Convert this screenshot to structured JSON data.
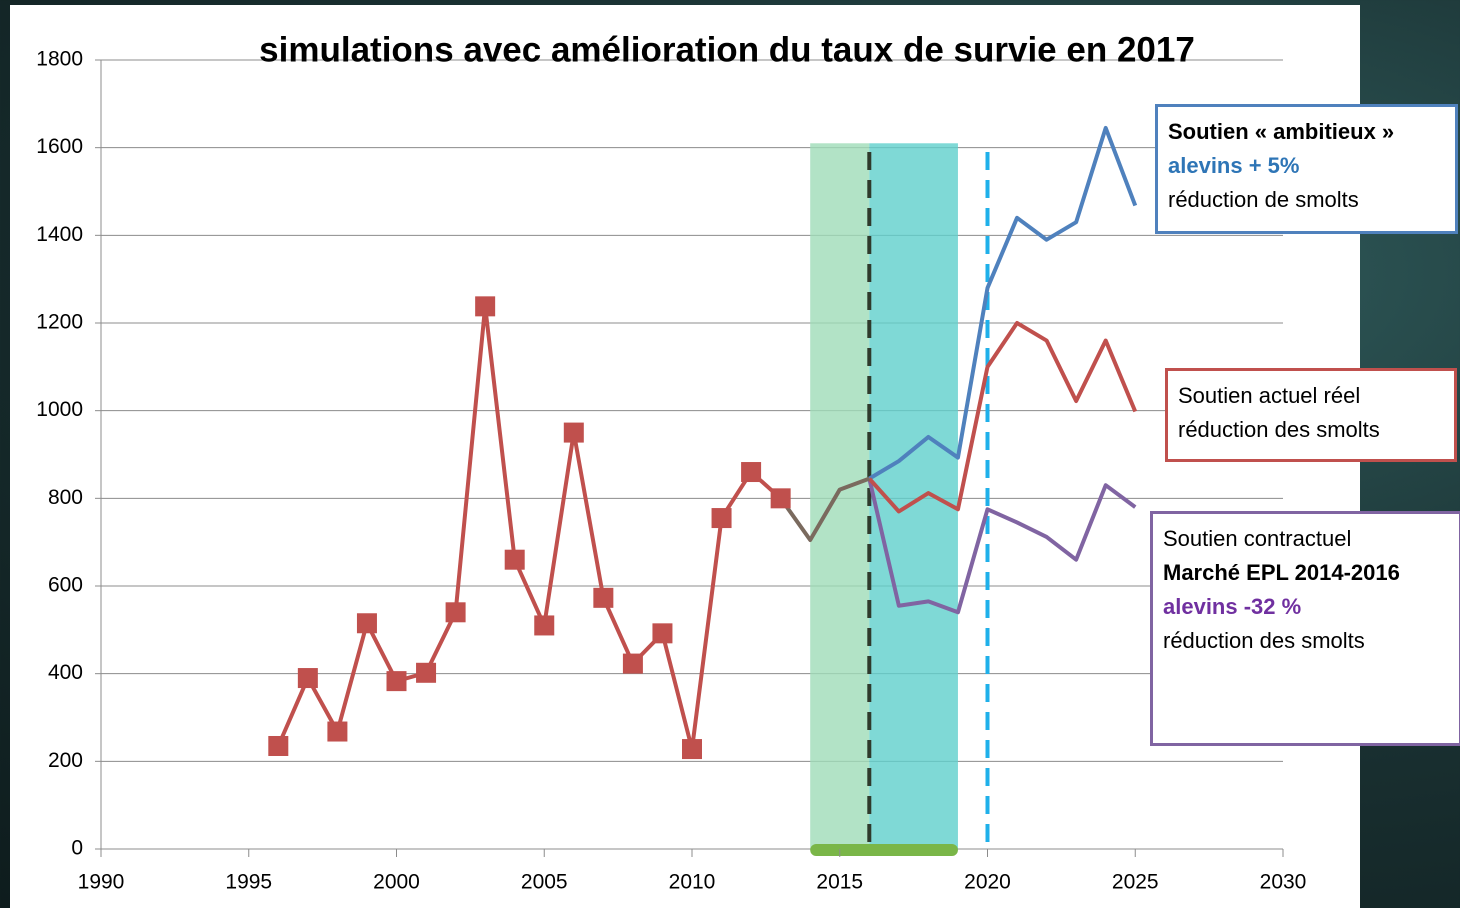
{
  "chart_data": {
    "type": "line",
    "title": "simulations avec amélioration du taux de survie en 2017",
    "xlim": [
      1990,
      2030
    ],
    "xticks": [
      1990,
      1995,
      2000,
      2005,
      2010,
      2015,
      2020,
      2025,
      2030
    ],
    "ylim": [
      0,
      1800
    ],
    "yticks": [
      0,
      200,
      400,
      600,
      800,
      1000,
      1200,
      1400,
      1600,
      1800
    ],
    "grid": true,
    "bands": [
      {
        "from": 2014,
        "to": 2016,
        "top": 1610,
        "color": "#9fdcb8"
      },
      {
        "from": 2016,
        "to": 2019,
        "top": 1610,
        "color": "#5fcfcc"
      }
    ],
    "vlines": [
      {
        "x": 2016,
        "color": "#2f3a2c"
      },
      {
        "x": 2020,
        "color": "#1fb0ea"
      }
    ],
    "series": [
      {
        "color": "#c0504d",
        "markers": true,
        "x": [
          1996,
          1997,
          1998,
          1999,
          2000,
          2001,
          2002,
          2003,
          2004,
          2005,
          2006,
          2007,
          2008,
          2009,
          2010,
          2011,
          2012,
          2013
        ],
        "values": [
          235,
          390,
          268,
          515,
          383,
          402,
          540,
          1238,
          660,
          510,
          950,
          573,
          423,
          492,
          228,
          755,
          860,
          800
        ]
      },
      {
        "color": "#7a6a5e",
        "markers": false,
        "x": [
          2013,
          2014,
          2015,
          2016
        ],
        "values": [
          800,
          705,
          820,
          845
        ]
      },
      {
        "color": "#4f81bd",
        "markers": false,
        "x": [
          2016,
          2017,
          2018,
          2019,
          2020,
          2021,
          2022,
          2023,
          2024,
          2025
        ],
        "values": [
          845,
          885,
          940,
          893,
          1280,
          1440,
          1390,
          1430,
          1645,
          1468
        ]
      },
      {
        "color": "#c0504d",
        "markers": false,
        "x": [
          2016,
          2017,
          2018,
          2019,
          2020,
          2021,
          2022,
          2023,
          2024,
          2025
        ],
        "values": [
          845,
          770,
          812,
          775,
          1100,
          1200,
          1160,
          1022,
          1160,
          998
        ]
      },
      {
        "color": "#8064a2",
        "markers": false,
        "x": [
          2016,
          2017,
          2018,
          2019,
          2020,
          2021,
          2022,
          2023,
          2024,
          2025
        ],
        "values": [
          845,
          555,
          565,
          540,
          775,
          745,
          712,
          660,
          830,
          780
        ]
      }
    ],
    "annotations": [
      {
        "border": "#4f81bd",
        "lines": [
          {
            "text": "Soutien « ambitieux »",
            "bold": true,
            "color": "#000000"
          },
          {
            "text": "alevins + 5%",
            "bold": true,
            "color": "#2e75b6"
          },
          {
            "text": "réduction de smolts",
            "bold": false,
            "color": "#000000"
          }
        ]
      },
      {
        "border": "#c0504d",
        "lines": [
          {
            "text": "Soutien actuel réel",
            "bold": false,
            "color": "#000000"
          },
          {
            "text": "réduction des smolts",
            "bold": false,
            "color": "#000000"
          }
        ]
      },
      {
        "border": "#8064a2",
        "lines": [
          {
            "text": "Soutien contractuel",
            "bold": false,
            "color": "#000000"
          },
          {
            "text": "Marché EPL 2014-2016",
            "bold": true,
            "color": "#000000"
          },
          {
            "text": "alevins -32 %",
            "bold": true,
            "color": "#7030a0"
          },
          {
            "text": "réduction des smolts",
            "bold": false,
            "color": "#000000"
          }
        ]
      }
    ]
  }
}
